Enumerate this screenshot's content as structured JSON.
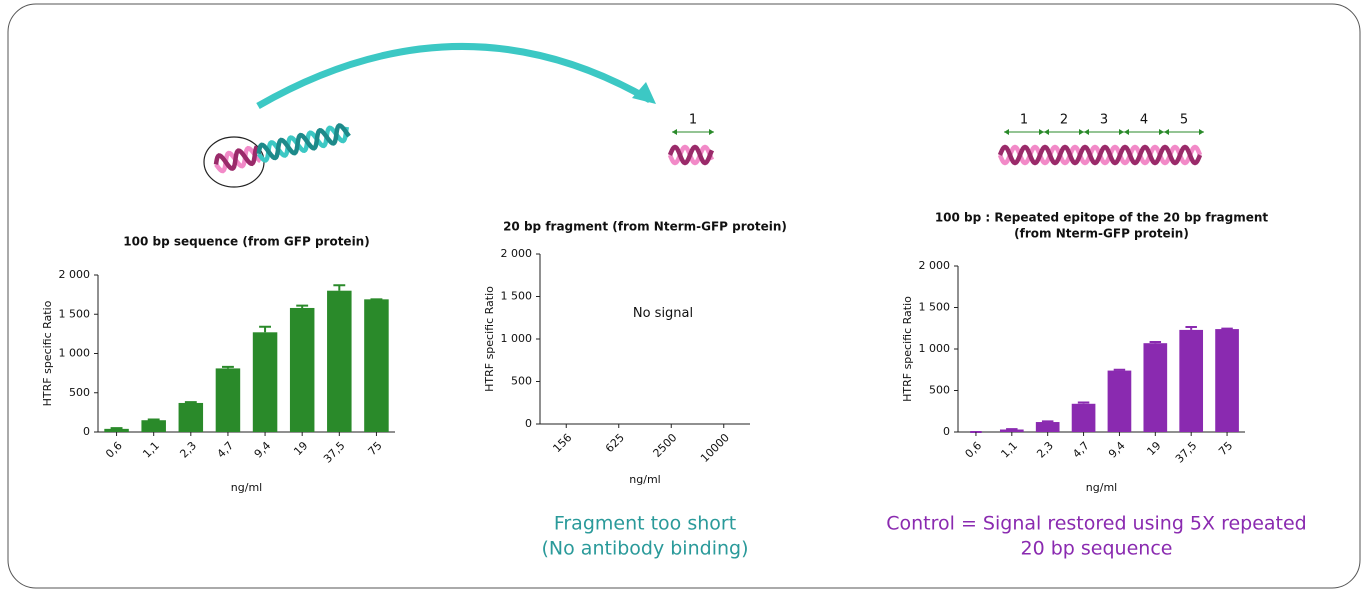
{
  "illustration": {
    "fragment_label": "1",
    "repeat_labels": [
      "1",
      "2",
      "3",
      "4",
      "5"
    ]
  },
  "chart_data": [
    {
      "type": "bar",
      "title": [
        "100 bp sequence  (from GFP protein)"
      ],
      "y_label": "HTRF specific Ratio",
      "x_label": "ng/ml",
      "categories": [
        "0,6",
        "1,1",
        "2,3",
        "4,7",
        "9,4",
        "19",
        "37,5",
        "75"
      ],
      "values": [
        40,
        150,
        370,
        810,
        1270,
        1580,
        1800,
        1690
      ],
      "errors": [
        10,
        10,
        10,
        20,
        70,
        30,
        70,
        0
      ],
      "color": "#2a8a2a",
      "ylim": [
        0,
        2000
      ],
      "yticks": [
        0,
        500,
        {
          "value": 1000,
          "label": "1 000"
        },
        {
          "value": 1500,
          "label": "1 500"
        },
        {
          "value": 2000,
          "label": "2 000"
        }
      ]
    },
    {
      "type": "bar",
      "title": [
        "20 bp fragment (from Nterm-GFP protein)"
      ],
      "y_label": "HTRF specific Ratio",
      "x_label": "ng/ml",
      "categories": [
        "156",
        "625",
        "2500",
        "10000"
      ],
      "values": [
        0,
        0,
        0,
        0
      ],
      "color": "#2a8a2a",
      "ylim": [
        0,
        2000
      ],
      "yticks": [
        0,
        500,
        {
          "value": 1000,
          "label": "1 000"
        },
        {
          "value": 1500,
          "label": "1 500"
        },
        {
          "value": 2000,
          "label": "2 000"
        }
      ],
      "annotation": "No signal",
      "caption": [
        "Fragment too short",
        "(No antibody binding)"
      ],
      "caption_color": "#2a9a9a"
    },
    {
      "type": "bar",
      "title": [
        "100 bp : Repeated epitope of the 20 bp fragment",
        "(from Nterm-GFP protein)"
      ],
      "y_label": "HTRF specific Ratio",
      "x_label": "ng/ml",
      "categories": [
        "0,6",
        "1,1",
        "2,3",
        "4,7",
        "9,4",
        "19",
        "37,5",
        "75"
      ],
      "values": [
        0,
        30,
        120,
        340,
        740,
        1070,
        1230,
        1240
      ],
      "errors": [
        0,
        5,
        8,
        15,
        10,
        15,
        35,
        5
      ],
      "color": "#8a2ab0",
      "ylim": [
        0,
        2000
      ],
      "yticks": [
        0,
        500,
        {
          "value": 1000,
          "label": "1 000"
        },
        {
          "value": 1500,
          "label": "1 500"
        },
        {
          "value": 2000,
          "label": "2 000"
        }
      ],
      "caption": [
        "Control = Signal restored using 5X repeated",
        "20 bp sequence"
      ],
      "caption_color": "#8a2ab0"
    }
  ]
}
